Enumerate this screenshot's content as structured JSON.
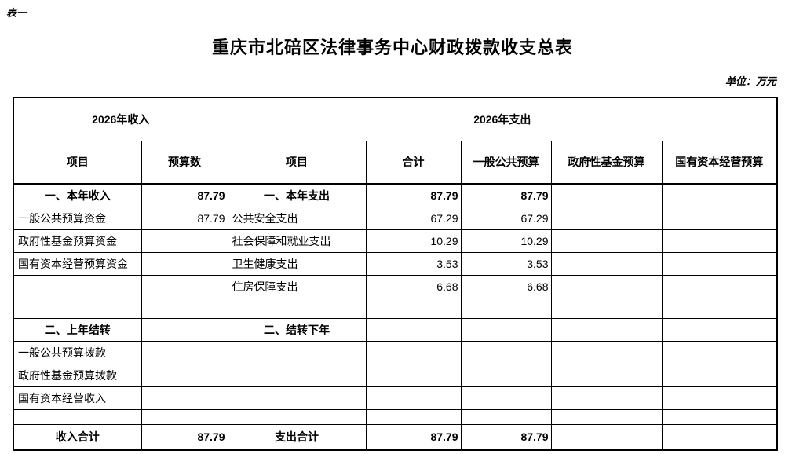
{
  "page": {
    "table_label": "表一",
    "title": "重庆市北碚区法律事务中心财政拨款收支总表",
    "unit_note": "单位：万元"
  },
  "table": {
    "group_headers": {
      "income": "2026年收入",
      "expense": "2026年支出"
    },
    "column_headers": [
      "项目",
      "预算数",
      "项目",
      "合计",
      "一般公共预算",
      "政府性基金预算",
      "国有资本经营预算"
    ],
    "rows": [
      {
        "bold": true,
        "cells": [
          "一、本年收入",
          "87.79",
          "一、本年支出",
          "87.79",
          "87.79",
          "",
          ""
        ]
      },
      {
        "bold": false,
        "cells": [
          "一般公共预算资金",
          "87.79",
          "公共安全支出",
          "67.29",
          "67.29",
          "",
          ""
        ]
      },
      {
        "bold": false,
        "cells": [
          "政府性基金预算资金",
          "",
          "社会保障和就业支出",
          "10.29",
          "10.29",
          "",
          ""
        ]
      },
      {
        "bold": false,
        "cells": [
          "国有资本经营预算资金",
          "",
          "卫生健康支出",
          "3.53",
          "3.53",
          "",
          ""
        ]
      },
      {
        "bold": false,
        "cells": [
          "",
          "",
          "住房保障支出",
          "6.68",
          "6.68",
          "",
          ""
        ]
      },
      {
        "bold": false,
        "cells": [
          "",
          "",
          "",
          "",
          "",
          "",
          ""
        ]
      },
      {
        "bold": true,
        "cells": [
          "二、上年结转",
          "",
          "二、结转下年",
          "",
          "",
          "",
          ""
        ]
      },
      {
        "bold": false,
        "cells": [
          "一般公共预算拨款",
          "",
          "",
          "",
          "",
          "",
          ""
        ]
      },
      {
        "bold": false,
        "cells": [
          "政府性基金预算拨款",
          "",
          "",
          "",
          "",
          "",
          ""
        ]
      },
      {
        "bold": false,
        "cells": [
          "国有资本经营收入",
          "",
          "",
          "",
          "",
          "",
          ""
        ]
      },
      {
        "bold": false,
        "cells": [
          "",
          "",
          "",
          "",
          "",
          "",
          ""
        ]
      },
      {
        "bold": true,
        "cells": [
          "收入合计",
          "87.79",
          "支出合计",
          "87.79",
          "87.79",
          "",
          ""
        ]
      }
    ]
  }
}
